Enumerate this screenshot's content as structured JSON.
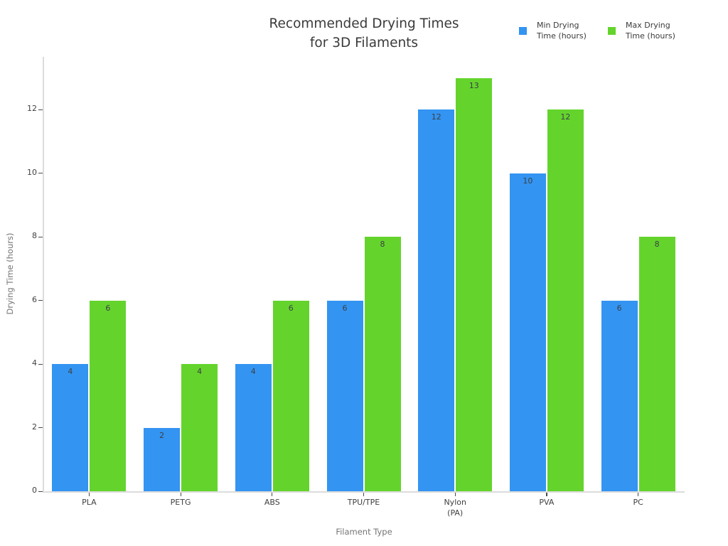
{
  "chart_data": {
    "type": "bar",
    "title": "Recommended Drying Times\nfor 3D Filaments",
    "xlabel": "Filament Type",
    "ylabel": "Drying Time (hours)",
    "categories": [
      "PLA",
      "PETG",
      "ABS",
      "TPU/TPE",
      "Nylon\n(PA)",
      "PVA",
      "PC"
    ],
    "series": [
      {
        "name": "Min Drying Time (hours)",
        "color": "#3394f2",
        "values": [
          4,
          2,
          4,
          6,
          12,
          10,
          6
        ]
      },
      {
        "name": "Max Drying Time (hours)",
        "color": "#64d42d",
        "values": [
          6,
          4,
          6,
          8,
          13,
          12,
          8
        ]
      }
    ],
    "yticks": [
      0,
      2,
      4,
      6,
      8,
      10,
      12
    ],
    "ylim": [
      0,
      13.66
    ],
    "grid": false,
    "legend_position": "top-right",
    "value_labels": "inside-top"
  },
  "colors": {
    "min_bar": "#3394f2",
    "max_bar": "#64d42d",
    "axis_line": "#dcdcdc",
    "tick_mark": "#4a4a4a",
    "tick_label_text": "#3f3f3f",
    "value_label_text": "#3c4043",
    "muted_text": "#757575",
    "title_text": "#3a3a3a",
    "background": "#ffffff"
  }
}
